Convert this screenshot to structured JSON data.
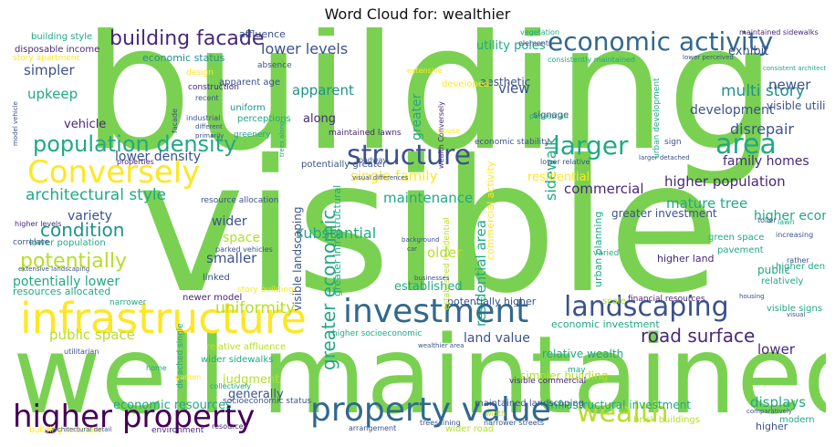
{
  "title": "Word Cloud for: wealthier",
  "palette": {
    "green": "#7ad151",
    "lime": "#b5de2b",
    "yellow": "#fde725",
    "teal": "#22a884",
    "sea": "#2a9d8f",
    "cyan": "#21918c",
    "blue": "#31688e",
    "indigo": "#3b528b",
    "purple": "#482878",
    "violet": "#440154",
    "mint": "#5ec962"
  },
  "words": [
    {
      "text": "building",
      "color": "green"
    },
    {
      "text": "visible",
      "color": "green"
    },
    {
      "text": "well maintained",
      "color": "green"
    },
    {
      "text": "infrastructure",
      "color": "yellow"
    },
    {
      "text": "Conversely",
      "color": "yellow"
    },
    {
      "text": "higher property",
      "color": "violet"
    },
    {
      "text": "property value",
      "color": "blue"
    },
    {
      "text": "investment",
      "color": "blue"
    },
    {
      "text": "economic activity",
      "color": "blue"
    },
    {
      "text": "structure",
      "color": "indigo"
    },
    {
      "text": "landscaping",
      "color": "indigo"
    },
    {
      "text": "wealth",
      "color": "lime"
    },
    {
      "text": "larger",
      "color": "teal"
    },
    {
      "text": "area",
      "color": "teal"
    },
    {
      "text": "population density",
      "color": "teal"
    },
    {
      "text": "building facade",
      "color": "purple"
    },
    {
      "text": "potentially",
      "color": "lime"
    },
    {
      "text": "condition",
      "color": "cyan"
    },
    {
      "text": "architectural style",
      "color": "teal"
    },
    {
      "text": "road surface",
      "color": "purple"
    },
    {
      "text": "greater economic",
      "color": "teal"
    },
    {
      "text": "upkeep",
      "color": "teal"
    },
    {
      "text": "simpler",
      "color": "indigo"
    },
    {
      "text": "lower levels",
      "color": "indigo"
    },
    {
      "text": "multi story",
      "color": "cyan"
    },
    {
      "text": "apparent",
      "color": "cyan"
    },
    {
      "text": "uniformity",
      "color": "lime"
    },
    {
      "text": "public space",
      "color": "lime"
    },
    {
      "text": "potentially lower",
      "color": "teal"
    },
    {
      "text": "substantial",
      "color": "teal"
    },
    {
      "text": "maintenance",
      "color": "teal"
    },
    {
      "text": "single family",
      "color": "yellow"
    },
    {
      "text": "variety",
      "color": "indigo"
    },
    {
      "text": "smaller",
      "color": "indigo"
    },
    {
      "text": "space",
      "color": "lime"
    },
    {
      "text": "wider",
      "color": "indigo"
    },
    {
      "text": "lower density",
      "color": "indigo"
    },
    {
      "text": "family homes",
      "color": "purple"
    },
    {
      "text": "higher population",
      "color": "purple"
    },
    {
      "text": "mature tree",
      "color": "teal"
    },
    {
      "text": "commercial",
      "color": "purple"
    },
    {
      "text": "development",
      "color": "indigo"
    },
    {
      "text": "disrepair",
      "color": "indigo"
    },
    {
      "text": "newer",
      "color": "indigo"
    },
    {
      "text": "exhibit",
      "color": "indigo"
    },
    {
      "text": "view",
      "color": "indigo"
    },
    {
      "text": "older",
      "color": "lime"
    },
    {
      "text": "displays",
      "color": "teal"
    },
    {
      "text": "land value",
      "color": "indigo"
    },
    {
      "text": "economic resources",
      "color": "teal"
    },
    {
      "text": "generally",
      "color": "indigo"
    },
    {
      "text": "judgment",
      "color": "lime"
    },
    {
      "text": "residential area",
      "color": "teal"
    },
    {
      "text": "sidewalk",
      "color": "teal"
    },
    {
      "text": "greater",
      "color": "teal"
    },
    {
      "text": "lower",
      "color": "purple"
    },
    {
      "text": "higher economic",
      "color": "teal"
    },
    {
      "text": "visible landscaping",
      "color": "indigo"
    },
    {
      "text": "utility poles",
      "color": "teal"
    },
    {
      "text": "economic status",
      "color": "cyan"
    },
    {
      "text": "greater investment",
      "color": "indigo"
    },
    {
      "text": "established",
      "color": "teal"
    },
    {
      "text": "potentially higher",
      "color": "indigo"
    },
    {
      "text": "resources allocated",
      "color": "teal"
    },
    {
      "text": "lower population",
      "color": "teal"
    },
    {
      "text": "economic investment",
      "color": "teal"
    },
    {
      "text": "relative wealth",
      "color": "teal"
    },
    {
      "text": "simpler building",
      "color": "lime"
    },
    {
      "text": "infrastructural investment",
      "color": "teal"
    },
    {
      "text": "maintained landscaping",
      "color": "indigo"
    },
    {
      "text": "socioeconomic status",
      "color": "indigo"
    },
    {
      "text": "visible utility",
      "color": "indigo"
    },
    {
      "text": "aesthetic",
      "color": "indigo"
    },
    {
      "text": "residential",
      "color": "yellow"
    },
    {
      "text": "along",
      "color": "purple"
    },
    {
      "text": "vehicle",
      "color": "purple"
    },
    {
      "text": "uniform",
      "color": "cyan"
    },
    {
      "text": "economic stability",
      "color": "indigo"
    },
    {
      "text": "green space",
      "color": "teal"
    },
    {
      "text": "higher density",
      "color": "teal"
    },
    {
      "text": "public",
      "color": "teal"
    },
    {
      "text": "relatively",
      "color": "teal"
    },
    {
      "text": "higher land",
      "color": "purple"
    },
    {
      "text": "pavement",
      "color": "teal"
    },
    {
      "text": "affluence",
      "color": "indigo"
    },
    {
      "text": "disposable income",
      "color": "purple"
    },
    {
      "text": "building style",
      "color": "teal"
    },
    {
      "text": "story apartment",
      "color": "yellow"
    },
    {
      "text": "construction",
      "color": "purple"
    },
    {
      "text": "design",
      "color": "yellow"
    },
    {
      "text": "apparent age",
      "color": "indigo"
    },
    {
      "text": "perceptions",
      "color": "teal"
    },
    {
      "text": "greenery",
      "color": "teal"
    },
    {
      "text": "developed",
      "color": "yellow"
    },
    {
      "text": "urban development",
      "color": "teal"
    },
    {
      "text": "wealth Conversely",
      "color": "purple"
    },
    {
      "text": "signage",
      "color": "indigo"
    },
    {
      "text": "sign",
      "color": "indigo"
    },
    {
      "text": "linked",
      "color": "indigo"
    },
    {
      "text": "newer model",
      "color": "purple"
    },
    {
      "text": "story building",
      "color": "yellow"
    },
    {
      "text": "narrower",
      "color": "teal"
    },
    {
      "text": "correlate",
      "color": "indigo"
    },
    {
      "text": "resource allocation",
      "color": "indigo"
    },
    {
      "text": "higher levels",
      "color": "purple"
    },
    {
      "text": "parked vehicles",
      "color": "indigo"
    },
    {
      "text": "urban planning",
      "color": "teal"
    },
    {
      "text": "commercial activity",
      "color": "yellow"
    },
    {
      "text": "greater infrastructural",
      "color": "teal"
    },
    {
      "text": "potentially greater",
      "color": "indigo"
    },
    {
      "text": "detached single",
      "color": "teal"
    },
    {
      "text": "relative affluence",
      "color": "lime"
    },
    {
      "text": "wider sidewalks",
      "color": "teal"
    },
    {
      "text": "higher socioeconomic",
      "color": "teal"
    },
    {
      "text": "visible commercial",
      "color": "purple"
    },
    {
      "text": "financial resources",
      "color": "purple"
    },
    {
      "text": "visible signs",
      "color": "teal"
    },
    {
      "text": "varied",
      "color": "teal"
    },
    {
      "text": "scale",
      "color": "lime"
    },
    {
      "text": "modern",
      "color": "teal"
    },
    {
      "text": "higher",
      "color": "indigo"
    },
    {
      "text": "brick buildings",
      "color": "lime"
    },
    {
      "text": "wider road",
      "color": "lime"
    },
    {
      "text": "trees lining",
      "color": "indigo"
    },
    {
      "text": "narrower streets",
      "color": "indigo"
    },
    {
      "text": "environment",
      "color": "purple"
    },
    {
      "text": "resource",
      "color": "purple"
    },
    {
      "text": "arrangement",
      "color": "indigo"
    },
    {
      "text": "building structure",
      "color": "yellow"
    },
    {
      "text": "collectively",
      "color": "teal"
    },
    {
      "text": "may",
      "color": "teal"
    },
    {
      "text": "garden",
      "color": "yellow"
    },
    {
      "text": "home",
      "color": "teal"
    },
    {
      "text": "absence",
      "color": "indigo"
    },
    {
      "text": "elements",
      "color": "indigo"
    },
    {
      "text": "vegetation",
      "color": "teal"
    },
    {
      "text": "maintained sidewalks",
      "color": "purple"
    },
    {
      "text": "consistently maintained",
      "color": "teal"
    },
    {
      "text": "lower perceived",
      "color": "indigo"
    },
    {
      "text": "consistent architectural",
      "color": "teal"
    },
    {
      "text": "extensive",
      "color": "yellow"
    },
    {
      "text": "house",
      "color": "yellow"
    },
    {
      "text": "lower relative",
      "color": "indigo"
    },
    {
      "text": "larger detached",
      "color": "indigo"
    },
    {
      "text": "roadway",
      "color": "indigo"
    },
    {
      "text": "visual differences",
      "color": "indigo"
    },
    {
      "text": "established residential",
      "color": "lime"
    },
    {
      "text": "maintained lawns",
      "color": "purple"
    },
    {
      "text": "recent",
      "color": "indigo"
    },
    {
      "text": "industrial",
      "color": "indigo"
    },
    {
      "text": "trees along",
      "color": "teal"
    },
    {
      "text": "properties",
      "color": "purple"
    },
    {
      "text": "pedestrian",
      "color": "teal"
    },
    {
      "text": "increasing",
      "color": "indigo"
    },
    {
      "text": "lawn",
      "color": "teal"
    },
    {
      "text": "toller",
      "color": "indigo"
    },
    {
      "text": "rather",
      "color": "indigo"
    },
    {
      "text": "background",
      "color": "indigo"
    },
    {
      "text": "car",
      "color": "indigo"
    },
    {
      "text": "wealthier area",
      "color": "indigo"
    },
    {
      "text": "housing",
      "color": "indigo"
    },
    {
      "text": "visual",
      "color": "indigo"
    },
    {
      "text": "extensive landscaping",
      "color": "indigo"
    },
    {
      "text": "utilitarian",
      "color": "indigo"
    },
    {
      "text": "architectural detail",
      "color": "indigo"
    },
    {
      "text": "model vehicle",
      "color": "indigo"
    },
    {
      "text": "facade",
      "color": "indigo"
    },
    {
      "text": "businesses",
      "color": "indigo"
    },
    {
      "text": "primarily",
      "color": "indigo"
    },
    {
      "text": "different",
      "color": "indigo"
    },
    {
      "text": "comparatively",
      "color": "indigo"
    },
    {
      "text": "width",
      "color": "lime"
    }
  ]
}
